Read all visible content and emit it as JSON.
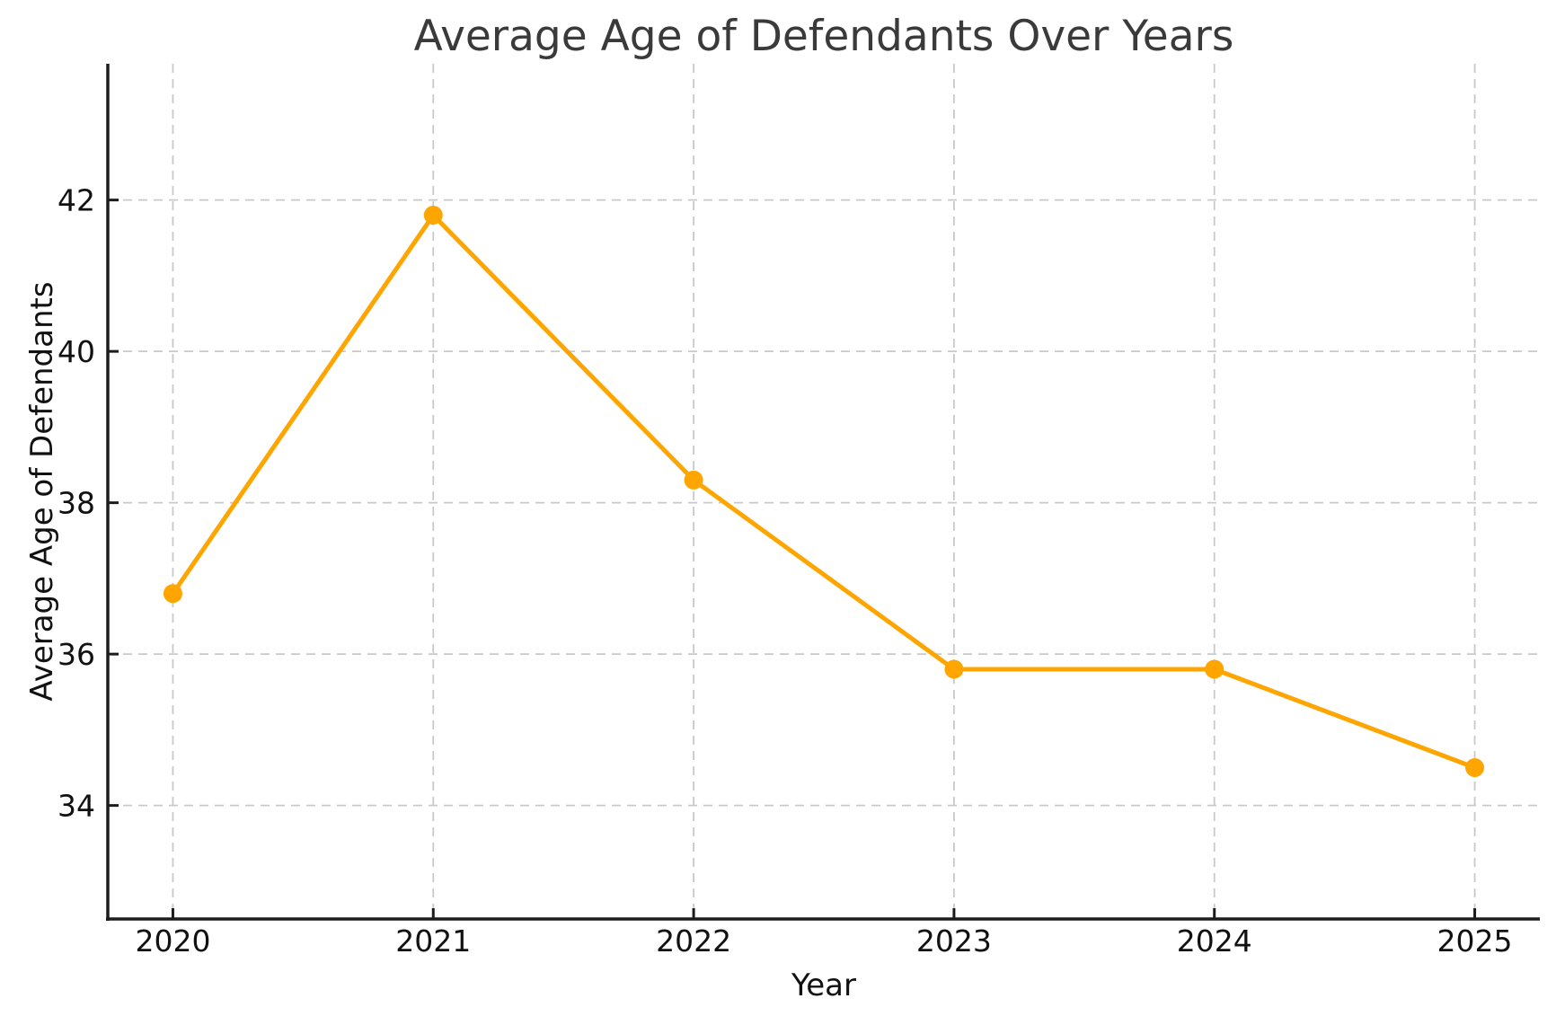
{
  "chart_data": {
    "type": "line",
    "title": "Average Age of Defendants Over Years",
    "xlabel": "Year",
    "ylabel": "Average Age of Defendants",
    "x": [
      2020,
      2021,
      2022,
      2023,
      2024,
      2025
    ],
    "series": [
      {
        "name": "Average Age of Defendants",
        "values": [
          36.8,
          41.8,
          38.3,
          35.8,
          35.8,
          34.5
        ]
      }
    ],
    "xticks": [
      "2020",
      "2021",
      "2022",
      "2023",
      "2024",
      "2025"
    ],
    "xtick_values": [
      2020,
      2021,
      2022,
      2023,
      2024,
      2025
    ],
    "yticks": [
      "34",
      "36",
      "38",
      "40",
      "42"
    ],
    "ytick_values": [
      34,
      36,
      38,
      40,
      42
    ],
    "xlim": [
      2019.75,
      2025.25
    ],
    "ylim": [
      32.5,
      43.8
    ],
    "grid": true,
    "grid_line_style": "dashed",
    "legend_position": "none",
    "marker_shape": "circle",
    "colors": {
      "line": "#FFA500",
      "marker": "#FFA500",
      "grid": "#C9C9C9",
      "spine": "#1C1C1C",
      "tick_label": "#111111",
      "axis_label": "#111111",
      "title": "#3A3A3A",
      "background": "#FFFFFF"
    }
  }
}
